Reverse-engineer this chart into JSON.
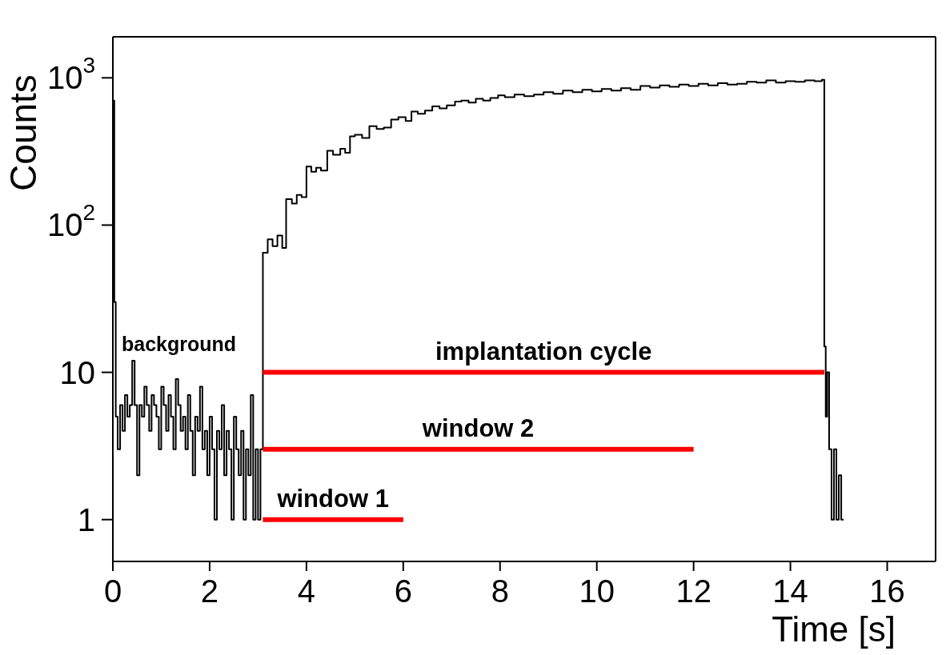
{
  "chart_data": {
    "type": "step",
    "xlabel": "Time [s]",
    "ylabel": "Counts",
    "xlim": [
      0,
      17
    ],
    "xticks": [
      0,
      2,
      4,
      6,
      8,
      10,
      12,
      14,
      16
    ],
    "ylim": [
      0.52,
      1900
    ],
    "yticks": [
      1,
      10,
      {
        "value": 100,
        "label": "10$^{2}$"
      },
      {
        "value": 1000,
        "label": "10$^{3}$"
      }
    ],
    "log": "y",
    "annotations": [
      "background"
    ],
    "series": [
      {
        "color": "#000000",
        "x": [
          0,
          0.03,
          0.06,
          0.1,
          0.15,
          0.2,
          0.25,
          0.3,
          0.35,
          0.4,
          0.45,
          0.5,
          0.55,
          0.6,
          0.65,
          0.7,
          0.75,
          0.8,
          0.85,
          0.9,
          0.95,
          1.0,
          1.05,
          1.1,
          1.15,
          1.2,
          1.25,
          1.3,
          1.35,
          1.4,
          1.45,
          1.5,
          1.55,
          1.6,
          1.65,
          1.7,
          1.75,
          1.8,
          1.85,
          1.9,
          1.95,
          2.0,
          2.05,
          2.1,
          2.15,
          2.2,
          2.25,
          2.3,
          2.35,
          2.4,
          2.45,
          2.5,
          2.55,
          2.6,
          2.65,
          2.7,
          2.75,
          2.8,
          2.85,
          2.9,
          2.95,
          3.0,
          3.05,
          3.1,
          3.2,
          3.3,
          3.4,
          3.5,
          3.58,
          3.7,
          3.8,
          3.9,
          4.0,
          4.1,
          4.2,
          4.3,
          4.43,
          4.55,
          4.7,
          4.8,
          4.9,
          5.0,
          5.15,
          5.3,
          5.45,
          5.6,
          5.75,
          5.9,
          6.05,
          6.17,
          6.3,
          6.45,
          6.6,
          6.75,
          6.9,
          7.07,
          7.2,
          7.35,
          7.5,
          7.65,
          7.8,
          7.96,
          8.1,
          8.3,
          8.5,
          8.7,
          8.9,
          9.1,
          9.3,
          9.5,
          9.7,
          9.9,
          10.1,
          10.3,
          10.5,
          10.7,
          10.9,
          11.1,
          11.3,
          11.5,
          11.7,
          11.9,
          12.1,
          12.3,
          12.5,
          12.7,
          12.9,
          13.1,
          13.3,
          13.5,
          13.7,
          13.9,
          14.1,
          14.3,
          14.5,
          14.65,
          14.7,
          14.73,
          14.76,
          14.8,
          14.85,
          14.9,
          14.95,
          15.0,
          15.05,
          15.1
        ],
        "values": [
          700,
          30,
          5,
          3,
          6,
          4,
          7,
          5,
          6,
          12,
          6,
          2,
          6,
          5,
          8,
          6,
          4,
          7,
          6,
          5,
          3,
          8,
          6,
          4,
          7,
          5,
          3,
          9,
          6,
          4,
          5,
          3,
          7,
          4,
          2,
          5,
          4,
          8,
          3,
          4,
          2,
          5,
          3,
          1,
          4,
          3,
          6,
          2,
          4,
          3,
          1,
          5,
          3,
          2,
          4,
          1,
          3,
          2,
          7,
          1,
          3,
          1,
          3,
          65,
          80,
          72,
          85,
          70,
          150,
          140,
          160,
          155,
          250,
          230,
          245,
          235,
          320,
          300,
          330,
          310,
          400,
          410,
          390,
          470,
          450,
          460,
          520,
          540,
          510,
          590,
          570,
          600,
          640,
          620,
          650,
          690,
          700,
          680,
          720,
          700,
          730,
          760,
          740,
          770,
          750,
          770,
          800,
          780,
          820,
          800,
          830,
          810,
          840,
          820,
          850,
          830,
          880,
          860,
          890,
          870,
          900,
          880,
          910,
          890,
          920,
          900,
          910,
          940,
          930,
          960,
          930,
          950,
          940,
          960,
          950,
          970,
          15,
          5,
          10,
          3,
          1,
          3,
          1,
          2,
          1,
          1
        ]
      },
      {
        "name": "implantation cycle",
        "type": "line",
        "color": "#ff0000",
        "x": [
          3.1,
          14.7
        ],
        "values": [
          10,
          10
        ]
      },
      {
        "name": "window 2",
        "type": "line",
        "color": "#ff0000",
        "x": [
          3.1,
          12
        ],
        "values": [
          3,
          3
        ]
      },
      {
        "name": "window 1",
        "type": "line",
        "color": "#ff0000",
        "x": [
          3.1,
          6
        ],
        "values": [
          1,
          1
        ]
      }
    ]
  }
}
